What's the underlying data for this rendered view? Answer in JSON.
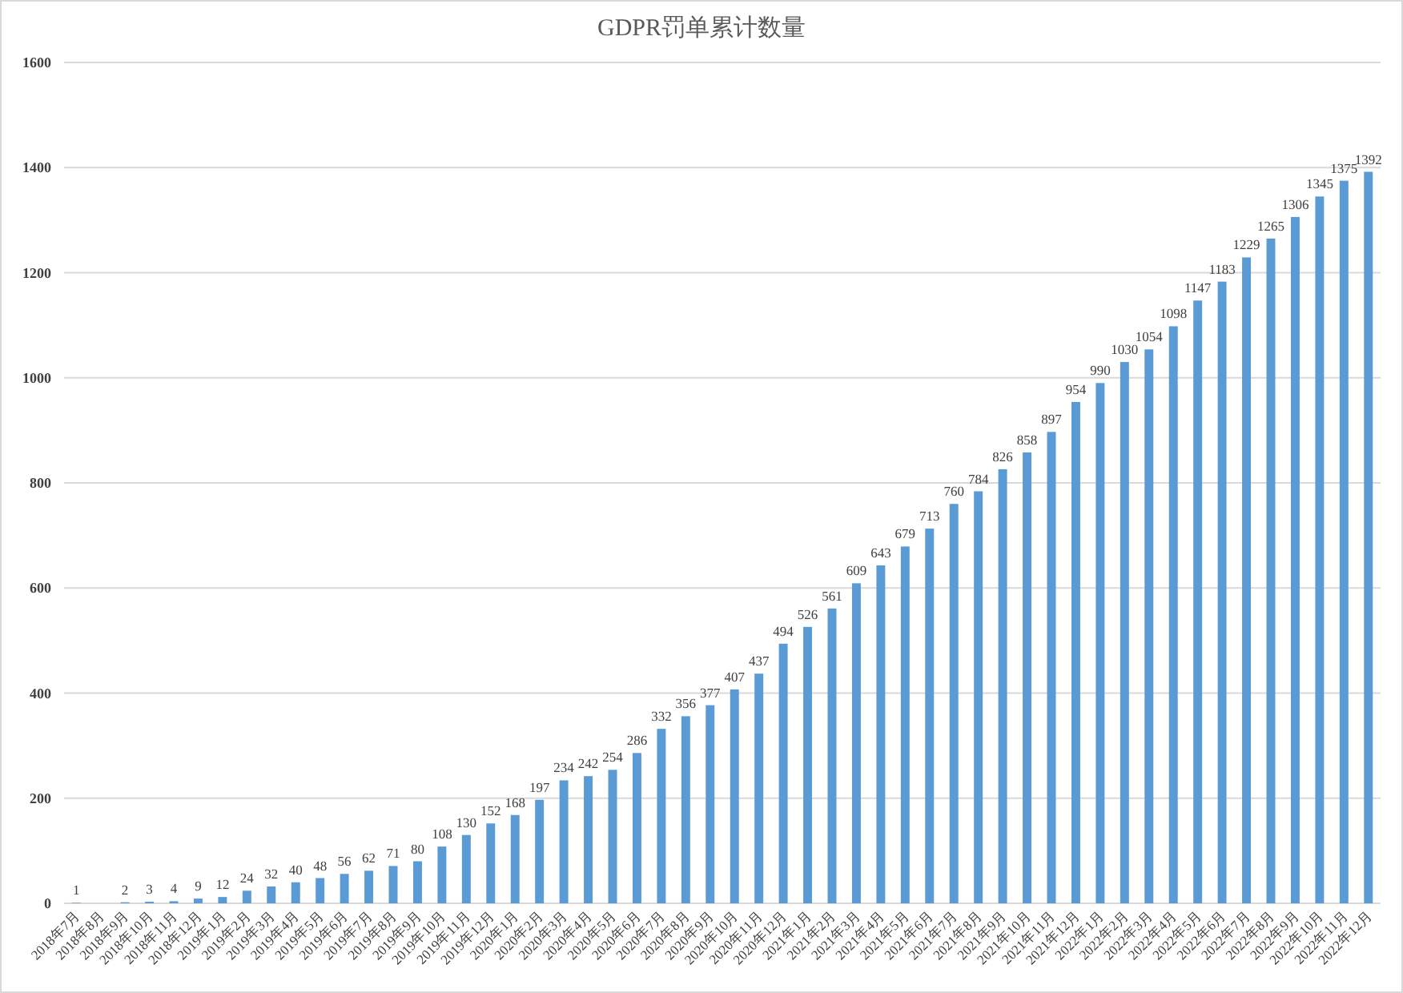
{
  "chart_data": {
    "type": "bar",
    "title": "GDPR罚单累计数量",
    "categories": [
      "2018年7月",
      "2018年8月",
      "2018年9月",
      "2018年10月",
      "2018年11月",
      "2018年12月",
      "2019年1月",
      "2019年2月",
      "2019年3月",
      "2019年4月",
      "2019年5月",
      "2019年6月",
      "2019年7月",
      "2019年8月",
      "2019年9月",
      "2019年10月",
      "2019年11月",
      "2019年12月",
      "2020年1月",
      "2020年2月",
      "2020年3月",
      "2020年4月",
      "2020年5月",
      "2020年6月",
      "2020年7月",
      "2020年8月",
      "2020年9月",
      "2020年10月",
      "2020年11月",
      "2020年12月",
      "2021年1月",
      "2021年2月",
      "2021年3月",
      "2021年4月",
      "2021年5月",
      "2021年6月",
      "2021年7月",
      "2021年8月",
      "2021年9月",
      "2021年10月",
      "2021年11月",
      "2021年12月",
      "2022年1月",
      "2022年2月",
      "2022年3月",
      "2022年4月",
      "2022年5月",
      "2022年6月",
      "2022年7月",
      "2022年8月",
      "2022年9月",
      "2022年10月",
      "2022年11月",
      "2022年12月"
    ],
    "values": [
      1,
      null,
      2,
      3,
      4,
      9,
      12,
      24,
      32,
      40,
      48,
      56,
      62,
      71,
      80,
      108,
      130,
      152,
      168,
      197,
      234,
      242,
      254,
      286,
      332,
      356,
      377,
      407,
      437,
      494,
      526,
      561,
      609,
      643,
      679,
      713,
      760,
      784,
      826,
      858,
      897,
      954,
      990,
      1030,
      1054,
      1098,
      1147,
      1183,
      1229,
      1265,
      1306,
      1345,
      1375,
      1392
    ],
    "color": "#5b9bd5",
    "ylim": [
      0,
      1600
    ],
    "yticks": [
      0,
      200,
      400,
      600,
      800,
      1000,
      1200,
      1400,
      1600
    ],
    "grid": "y",
    "data_labels": true
  }
}
